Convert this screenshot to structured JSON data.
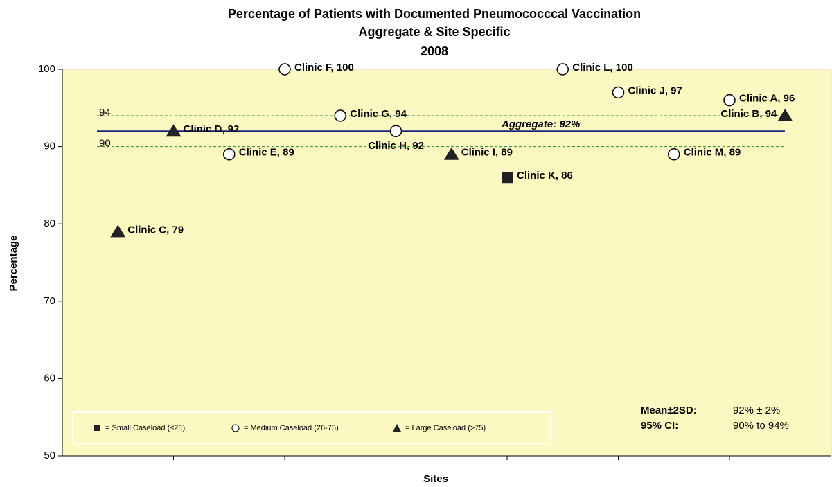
{
  "chart_data": {
    "type": "scatter",
    "title": "Percentage of Patients with Documented Pneumococccal Vaccination",
    "subtitle": "Aggregate & Site Specific",
    "subtitle2": "2008",
    "ylabel": "Percentage",
    "xlabel": "Sites",
    "ylim": [
      50,
      100
    ],
    "yticks": [
      50,
      60,
      70,
      80,
      90,
      100
    ],
    "series": [
      {
        "name": "= Small Caseload (≤25)",
        "marker": "square",
        "color": "#222222",
        "values": [
          null,
          null,
          null,
          null,
          null,
          null,
          null,
          86,
          null,
          null,
          null,
          null,
          null
        ],
        "value_labels": [
          null,
          null,
          null,
          null,
          null,
          null,
          null,
          "Clinic K, 86",
          null,
          null,
          null,
          null,
          null
        ]
      },
      {
        "name": "= Medium Caseload  (26-75)",
        "marker": "circle",
        "color": "#ffffff",
        "values": [
          null,
          null,
          89,
          100,
          94,
          92,
          null,
          null,
          100,
          97,
          89,
          96,
          null
        ],
        "value_labels": [
          null,
          null,
          "Clinic E, 89",
          "Clinic F, 100",
          "Clinic G, 94",
          "Clinic H, 92",
          null,
          null,
          "Clinic L, 100",
          "Clinic J, 97",
          "Clinic M, 89",
          "Clinic A, 96",
          null
        ]
      },
      {
        "name": "= Large Caseload (>75)",
        "marker": "triangle",
        "color": "#222222",
        "values": [
          79,
          92,
          null,
          null,
          null,
          null,
          89,
          null,
          null,
          null,
          null,
          null,
          94
        ],
        "value_labels": [
          "Clinic C, 79",
          "Clinic D, 92",
          null,
          null,
          null,
          null,
          "Clinic I, 89",
          null,
          null,
          null,
          null,
          null,
          "Clinic B, 94"
        ]
      }
    ],
    "reference_lines": [
      {
        "value": 92,
        "label": "Aggregate: 92%",
        "color": "#1a237e",
        "style": "solid"
      },
      {
        "value": 94,
        "label": "94",
        "color": "#2e8b2e",
        "style": "dashed"
      },
      {
        "value": 90,
        "label": "90",
        "color": "#2e8b2e",
        "style": "dashed"
      }
    ],
    "stats": [
      {
        "label": "Mean±2SD:",
        "text": "92% ± 2%"
      },
      {
        "label": "95% CI:",
        "text": "90% to 94%"
      }
    ]
  }
}
